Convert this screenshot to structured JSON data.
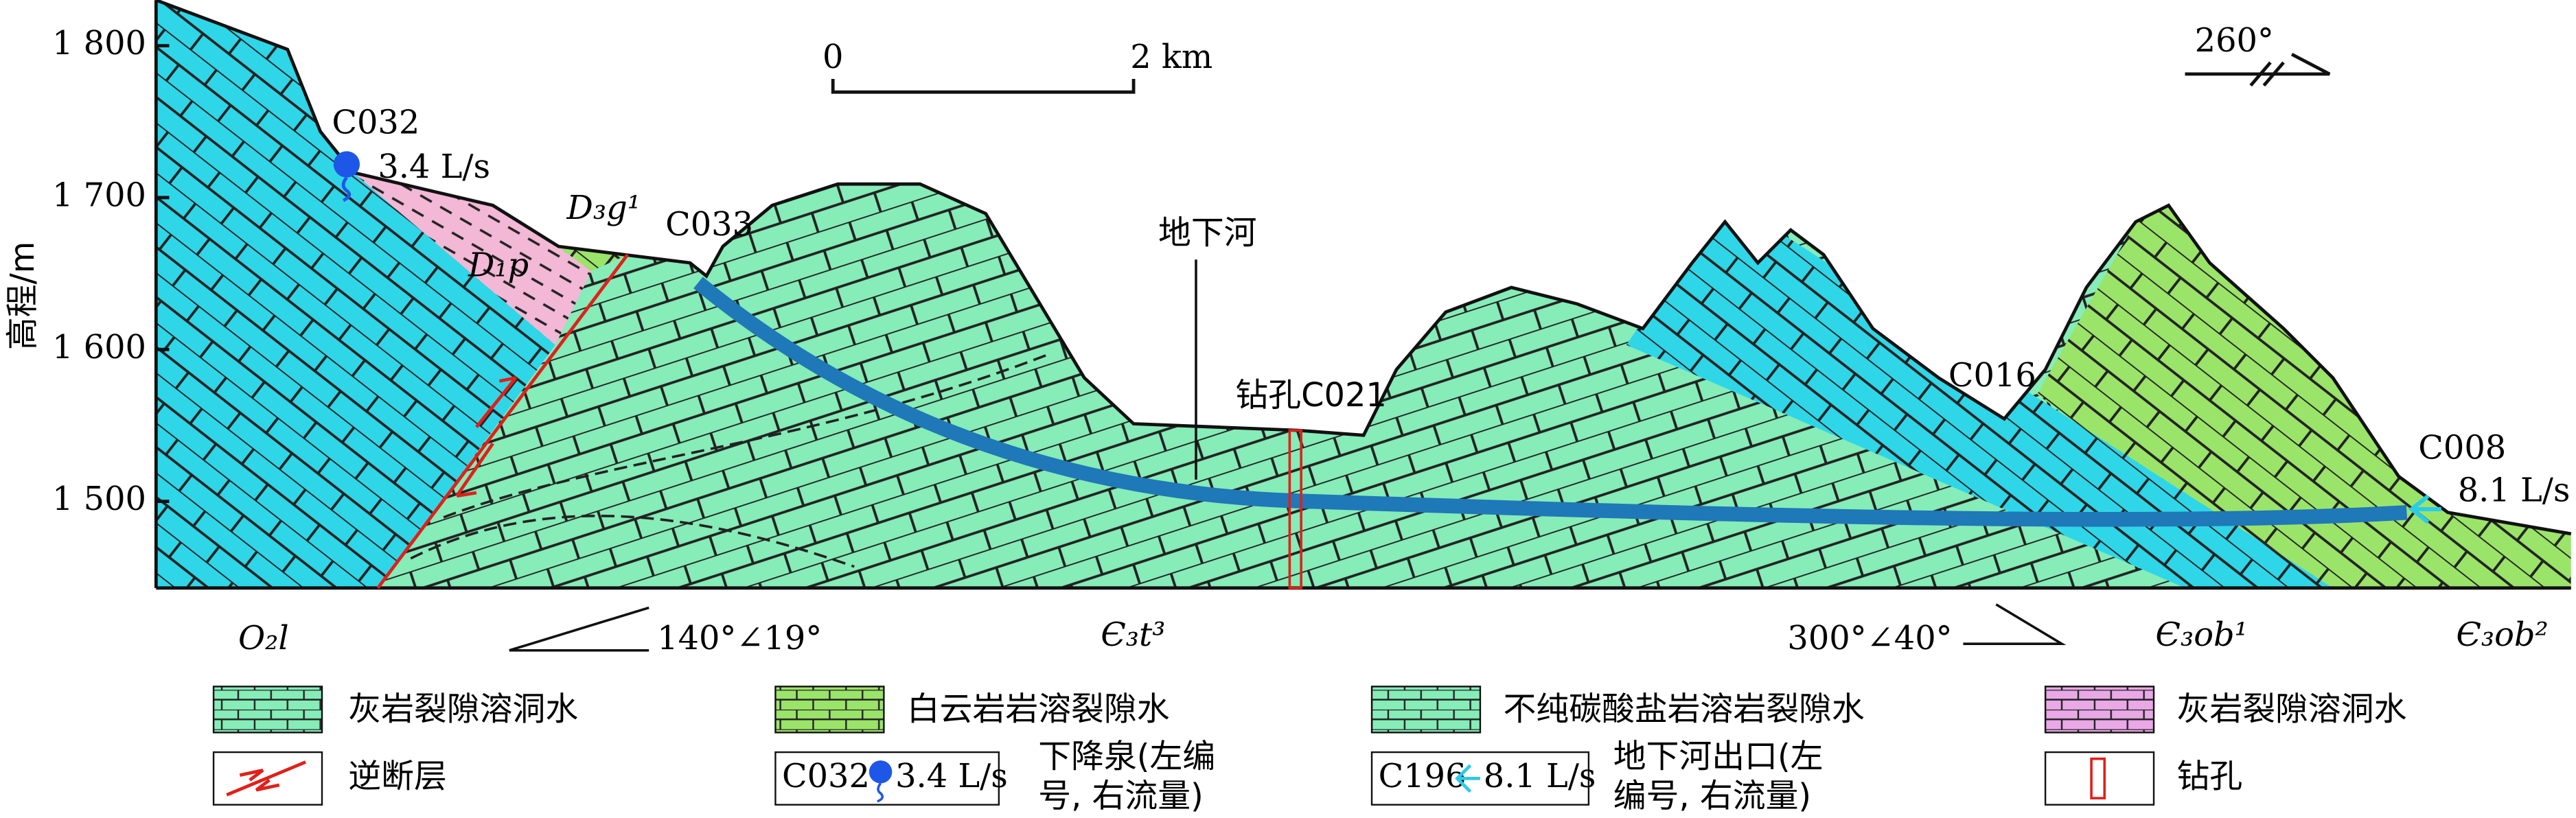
{
  "axis": {
    "label": "高程/m",
    "ylim": [
      1443,
      1830
    ],
    "ticks": [
      {
        "value": 1800,
        "label": "1 800"
      },
      {
        "value": 1700,
        "label": "1 700"
      },
      {
        "value": 1600,
        "label": "1 600"
      },
      {
        "value": 1500,
        "label": "1 500"
      }
    ]
  },
  "scale_bar": {
    "start": "0",
    "end": "2 km"
  },
  "direction": "260°",
  "labels": {
    "c032": "C032",
    "c032_flow": "3.4 L/s",
    "d3g1": "D₃g¹",
    "d1p": "D₁p",
    "c033": "C033",
    "river": "地下河",
    "borehole": "钻孔C021",
    "c016": "C016",
    "c008": "C008",
    "c008_flow": "8.1 L/s",
    "o2l": "O₂l",
    "dip_left": "140°∠19°",
    "e3t3": "Є₃t³",
    "dip_right": "300°∠40°",
    "e3ob1": "Є₃ob¹",
    "e3ob2": "Є₃ob²"
  },
  "legend": {
    "limestone": "灰岩裂隙溶洞水",
    "dolomite": "白云岩岩溶裂隙水",
    "impure": "不纯碳酸盐岩溶岩裂隙水",
    "limestone_pink": "灰岩裂隙溶洞水",
    "fault": "逆断层",
    "spring_code": "C032",
    "spring_flow": "3.4 L/s",
    "spring_1": "下降泉(左编",
    "spring_2": "号, 右流量)",
    "outlet_code": "C196",
    "outlet_flow": "8.1 L/s",
    "outlet_1": "地下河出口(左",
    "outlet_2": "编号, 右流量)",
    "borehole": "钻孔"
  }
}
